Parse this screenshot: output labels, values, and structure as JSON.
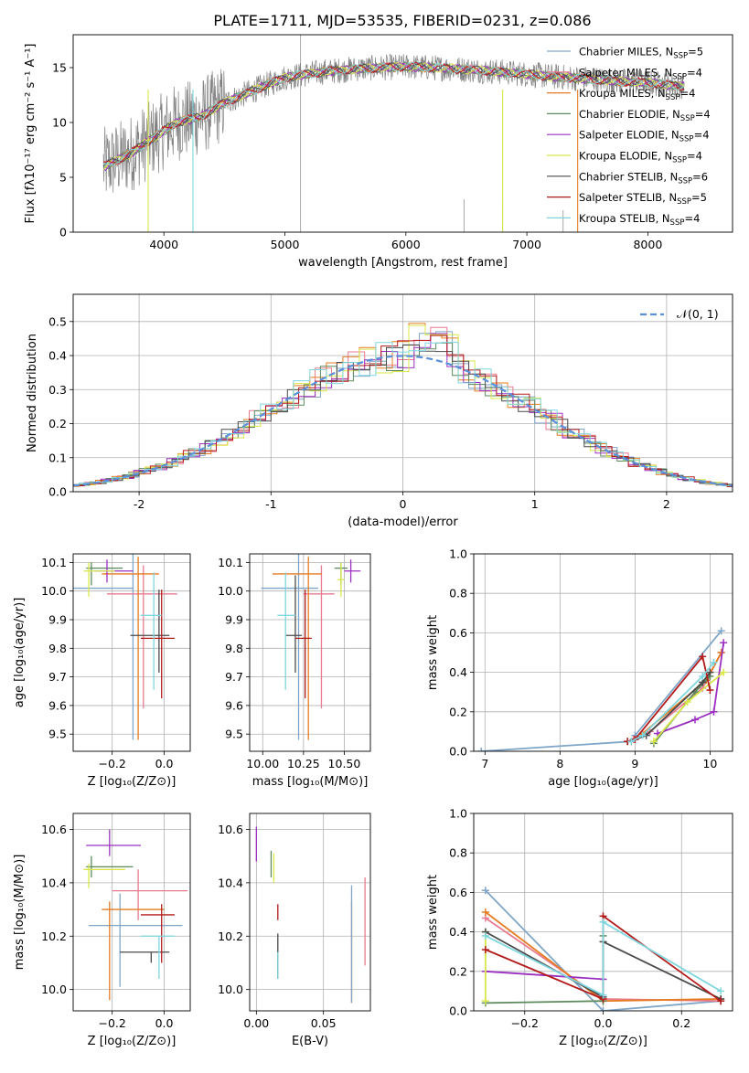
{
  "figure": {
    "title": "PLATE=1711, MJD=53535, FIBERID=0231, z=0.086"
  },
  "colors": {
    "Chabrier MILES": "#7fa6c8",
    "Salpeter MILES": "#e87a8f",
    "Kroupa MILES": "#e57c22",
    "Chabrier ELODIE": "#5c8a5c",
    "Salpeter ELODIE": "#9b30c0",
    "Kroupa ELODIE": "#d8e84a",
    "Chabrier STELIB": "#4a4a4a",
    "Salpeter STELIB": "#b31b1b",
    "Kroupa STELIB": "#7fd6df",
    "data": "#808080",
    "gauss": "#5b8fd9"
  },
  "chart_data": [
    {
      "id": "spectrum",
      "type": "line",
      "xlabel": "wavelength [Angstrom, rest frame]",
      "ylabel": "Flux [fλ10⁻¹⁷ erg cm⁻² s⁻¹ A⁻¹]",
      "xlim": [
        3250,
        8700
      ],
      "ylim": [
        0,
        18
      ],
      "xticks": [
        4000,
        5000,
        6000,
        7000,
        8000
      ],
      "yticks": [
        0,
        5,
        10,
        15
      ],
      "grid": false,
      "legend": "top-right",
      "continuum": {
        "x": [
          3500,
          3700,
          3900,
          4100,
          4300,
          4500,
          4800,
          5000,
          5300,
          5600,
          6000,
          6400,
          6800,
          7200,
          7600,
          8000,
          8300
        ],
        "y": [
          6.0,
          7.0,
          8.5,
          10.0,
          10.5,
          11.8,
          13.2,
          14.1,
          14.6,
          14.9,
          15.1,
          14.9,
          14.6,
          14.2,
          13.9,
          13.6,
          13.3
        ]
      },
      "legend_entries": [
        {
          "name": "Chabrier MILES, N",
          "sub": "SSP",
          "tail": "=5"
        },
        {
          "name": "Salpeter MILES, N",
          "sub": "SSP",
          "tail": "=4"
        },
        {
          "name": "Kroupa MILES, N",
          "sub": "SSP",
          "tail": "=4"
        },
        {
          "name": "Chabrier ELODIE, N",
          "sub": "SSP",
          "tail": "=4"
        },
        {
          "name": "Salpeter ELODIE, N",
          "sub": "SSP",
          "tail": "=4"
        },
        {
          "name": "Kroupa ELODIE, N",
          "sub": "SSP",
          "tail": "=4"
        },
        {
          "name": "Chabrier STELIB, N",
          "sub": "SSP",
          "tail": "=6"
        },
        {
          "name": "Salpeter STELIB, N",
          "sub": "SSP",
          "tail": "=5"
        },
        {
          "name": "Kroupa STELIB, N",
          "sub": "SSP",
          "tail": "=4"
        }
      ]
    },
    {
      "id": "residuals",
      "type": "line",
      "xlabel": "(data-model)/error",
      "ylabel": "Normed distribution",
      "xlim": [
        -2.5,
        2.5
      ],
      "ylim": [
        0,
        0.58
      ],
      "xticks": [
        -2,
        -1,
        0,
        1,
        2
      ],
      "yticks": [
        0.0,
        0.1,
        0.2,
        0.3,
        0.4,
        0.5
      ],
      "grid": true,
      "legend": "top-right",
      "gauss_label": "𝒩(0, 1)"
    },
    {
      "id": "age_Z",
      "type": "scatter",
      "xlabel": "Z [log₁₀(Z/Z⊙)]",
      "ylabel": "age  [log₁₀(age/yr)]",
      "xlim": [
        -0.35,
        0.1
      ],
      "ylim": [
        9.44,
        10.13
      ],
      "xticks": [
        -0.2,
        0.0
      ],
      "xticklabels": [
        "−0.2",
        "0.0"
      ],
      "yticks": [
        9.5,
        9.6,
        9.7,
        9.8,
        9.9,
        10.0,
        10.1
      ],
      "grid": true,
      "points": [
        {
          "model": "Chabrier MILES",
          "x": -0.12,
          "y": 10.01,
          "xerr": [
            0.24,
            0.0
          ],
          "yerr": [
            0.53,
            0.12
          ]
        },
        {
          "model": "Salpeter MILES",
          "x": -0.08,
          "y": 9.99,
          "xerr": [
            0.14,
            0.13
          ],
          "yerr": [
            0.4,
            0.1
          ]
        },
        {
          "model": "Kroupa MILES",
          "x": -0.1,
          "y": 10.06,
          "xerr": [
            0.14,
            0.08
          ],
          "yerr": [
            0.58,
            0.06
          ]
        },
        {
          "model": "Chabrier ELODIE",
          "x": -0.28,
          "y": 10.08,
          "xerr": [
            0.02,
            0.12
          ],
          "yerr": [
            0.06,
            0.02
          ]
        },
        {
          "model": "Salpeter ELODIE",
          "x": -0.22,
          "y": 10.07,
          "xerr": [
            0.05,
            0.1
          ],
          "yerr": [
            0.04,
            0.04
          ]
        },
        {
          "model": "Kroupa ELODIE",
          "x": -0.29,
          "y": 10.07,
          "xerr": [
            0.02,
            0.1
          ],
          "yerr": [
            0.09,
            0.03
          ]
        },
        {
          "model": "Chabrier STELIB",
          "x": -0.02,
          "y": 9.845,
          "xerr": [
            0.11,
            0.04
          ],
          "yerr": [
            0.13,
            0.16
          ]
        },
        {
          "model": "Salpeter STELIB",
          "x": -0.01,
          "y": 9.835,
          "xerr": [
            0.08,
            0.05
          ],
          "yerr": [
            0.21,
            0.17
          ]
        },
        {
          "model": "Kroupa STELIB",
          "x": -0.04,
          "y": 9.915,
          "xerr": [
            0.05,
            0.03
          ],
          "yerr": [
            0.26,
            0.15
          ]
        }
      ]
    },
    {
      "id": "age_mass",
      "type": "scatter",
      "xlabel": "mass [log₁₀(M/M⊙)]",
      "ylabel": "",
      "xlim": [
        9.92,
        10.66
      ],
      "ylim": [
        9.44,
        10.13
      ],
      "xticks": [
        10.0,
        10.25,
        10.5
      ],
      "xticklabels": [
        "10.00",
        "10.25",
        "10.50"
      ],
      "yticks": [
        9.5,
        9.6,
        9.7,
        9.8,
        9.9,
        10.0,
        10.1
      ],
      "grid": true,
      "points": [
        {
          "model": "Chabrier MILES",
          "x": 10.22,
          "y": 10.01,
          "xerr": [
            0.23,
            0.12
          ],
          "yerr": [
            0.53,
            0.12
          ]
        },
        {
          "model": "Salpeter MILES",
          "x": 10.36,
          "y": 9.99,
          "xerr": [
            0.11,
            0.08
          ],
          "yerr": [
            0.4,
            0.1
          ]
        },
        {
          "model": "Kroupa MILES",
          "x": 10.28,
          "y": 10.06,
          "xerr": [
            0.22,
            0.08
          ],
          "yerr": [
            0.58,
            0.06
          ]
        },
        {
          "model": "Chabrier ELODIE",
          "x": 10.48,
          "y": 10.08,
          "xerr": [
            0.04,
            0.04
          ],
          "yerr": [
            0.06,
            0.02
          ]
        },
        {
          "model": "Salpeter ELODIE",
          "x": 10.54,
          "y": 10.07,
          "xerr": [
            0.04,
            0.06
          ],
          "yerr": [
            0.04,
            0.04
          ]
        },
        {
          "model": "Kroupa ELODIE",
          "x": 10.48,
          "y": 10.04,
          "xerr": [
            0.02,
            0.02
          ],
          "yerr": [
            0.06,
            0.06
          ]
        },
        {
          "model": "Chabrier STELIB",
          "x": 10.2,
          "y": 9.845,
          "xerr": [
            0.06,
            0.04
          ],
          "yerr": [
            0.13,
            0.21
          ]
        },
        {
          "model": "Salpeter STELIB",
          "x": 10.26,
          "y": 9.835,
          "xerr": [
            0.06,
            0.04
          ],
          "yerr": [
            0.21,
            0.17
          ]
        },
        {
          "model": "Kroupa STELIB",
          "x": 10.14,
          "y": 9.915,
          "xerr": [
            0.05,
            0.06
          ],
          "yerr": [
            0.26,
            0.15
          ]
        }
      ]
    },
    {
      "id": "weight_age",
      "type": "line",
      "xlabel": "age  [log₁₀(age/yr)]",
      "ylabel": "mass weight",
      "xlim": [
        6.85,
        10.3
      ],
      "ylim": [
        0,
        1.0
      ],
      "xticks": [
        7,
        8,
        9,
        10
      ],
      "yticks": [
        0.0,
        0.2,
        0.4,
        0.6,
        0.8,
        1.0
      ],
      "grid": true,
      "series": [
        {
          "model": "Chabrier MILES",
          "x": [
            6.95,
            8.95,
            9.0,
            10.15
          ],
          "y": [
            0.0,
            0.05,
            0.08,
            0.61
          ]
        },
        {
          "model": "Salpeter MILES",
          "x": [
            8.98,
            9.2,
            9.9,
            10.15
          ],
          "y": [
            0.06,
            0.1,
            0.32,
            0.5
          ]
        },
        {
          "model": "Kroupa MILES",
          "x": [
            8.95,
            9.1,
            9.95,
            10.15
          ],
          "y": [
            0.05,
            0.09,
            0.36,
            0.5
          ]
        },
        {
          "model": "Chabrier ELODIE",
          "x": [
            9.25,
            9.8,
            10.0
          ],
          "y": [
            0.04,
            0.3,
            0.38
          ]
        },
        {
          "model": "Salpeter ELODIE",
          "x": [
            9.3,
            9.8,
            10.05,
            10.18
          ],
          "y": [
            0.09,
            0.16,
            0.2,
            0.55
          ]
        },
        {
          "model": "Kroupa ELODIE",
          "x": [
            9.25,
            9.7,
            10.18
          ],
          "y": [
            0.05,
            0.25,
            0.4
          ]
        },
        {
          "model": "Chabrier STELIB",
          "x": [
            8.9,
            9.0,
            9.15,
            9.9,
            10.0
          ],
          "y": [
            0.05,
            0.06,
            0.08,
            0.35,
            0.4
          ]
        },
        {
          "model": "Salpeter STELIB",
          "x": [
            8.9,
            9.0,
            9.9,
            10.0
          ],
          "y": [
            0.05,
            0.06,
            0.48,
            0.31
          ]
        },
        {
          "model": "Kroupa STELIB",
          "x": [
            8.95,
            9.1,
            9.9,
            10.05
          ],
          "y": [
            0.05,
            0.08,
            0.38,
            0.45
          ]
        }
      ]
    },
    {
      "id": "mass_Z",
      "type": "scatter",
      "xlabel": "Z [log₁₀(Z/Z⊙)]",
      "ylabel": "mass [log₁₀(M/M⊙)]",
      "xlim": [
        -0.35,
        0.1
      ],
      "ylim": [
        9.92,
        10.66
      ],
      "xticks": [
        -0.2,
        0.0
      ],
      "xticklabels": [
        "−0.2",
        "0.0"
      ],
      "yticks": [
        10.0,
        10.2,
        10.4,
        10.6
      ],
      "yticklabels": [
        "10.0",
        "10.2",
        "10.4",
        "10.6"
      ],
      "grid": true,
      "points": [
        {
          "model": "Chabrier MILES",
          "x": -0.17,
          "y": 10.24,
          "xerr": [
            0.12,
            0.24
          ],
          "yerr": [
            0.23,
            0.12
          ]
        },
        {
          "model": "Salpeter MILES",
          "x": -0.1,
          "y": 10.37,
          "xerr": [
            0.1,
            0.19
          ],
          "yerr": [
            0.11,
            0.08
          ]
        },
        {
          "model": "Kroupa MILES",
          "x": -0.21,
          "y": 10.3,
          "xerr": [
            0.03,
            0.21
          ],
          "yerr": [
            0.34,
            0.03
          ]
        },
        {
          "model": "Chabrier ELODIE",
          "x": -0.28,
          "y": 10.46,
          "xerr": [
            0.02,
            0.16
          ],
          "yerr": [
            0.04,
            0.04
          ]
        },
        {
          "model": "Salpeter ELODIE",
          "x": -0.21,
          "y": 10.54,
          "xerr": [
            0.09,
            0.12
          ],
          "yerr": [
            0.04,
            0.06
          ]
        },
        {
          "model": "Kroupa ELODIE",
          "x": -0.29,
          "y": 10.45,
          "xerr": [
            0.02,
            0.14
          ],
          "yerr": [
            0.07,
            0.02
          ]
        },
        {
          "model": "Chabrier STELIB",
          "x": -0.05,
          "y": 10.14,
          "xerr": [
            0.12,
            0.07
          ],
          "yerr": [
            0.04,
            0.0
          ]
        },
        {
          "model": "Salpeter STELIB",
          "x": -0.01,
          "y": 10.28,
          "xerr": [
            0.08,
            0.05
          ],
          "yerr": [
            0.18,
            0.04
          ]
        },
        {
          "model": "Kroupa STELIB",
          "x": -0.02,
          "y": 10.2,
          "xerr": [
            0.07,
            0.06
          ],
          "yerr": [
            0.16,
            0.0
          ]
        }
      ]
    },
    {
      "id": "mass_EBV",
      "type": "scatter",
      "xlabel": "E(B-V)",
      "ylabel": "",
      "xlim": [
        -0.005,
        0.085
      ],
      "ylim": [
        9.92,
        10.66
      ],
      "xticks": [
        0.0,
        0.05
      ],
      "xticklabels": [
        "0.00",
        "0.05"
      ],
      "yticks": [
        10.0,
        10.2,
        10.4,
        10.6
      ],
      "yticklabels": [
        "10.0",
        "10.2",
        "10.4",
        "10.6"
      ],
      "grid": true,
      "points": [
        {
          "model": "Salpeter ELODIE",
          "x": 0.0,
          "y": 10.54,
          "yerr": [
            0.06,
            0.07
          ]
        },
        {
          "model": "Chabrier ELODIE",
          "x": 0.011,
          "y": 10.46,
          "yerr": [
            0.04,
            0.06
          ]
        },
        {
          "model": "Kroupa ELODIE",
          "x": 0.013,
          "y": 10.45,
          "yerr": [
            0.05,
            0.06
          ]
        },
        {
          "model": "Salpeter STELIB",
          "x": 0.016,
          "y": 10.28,
          "yerr": [
            0.02,
            0.04
          ]
        },
        {
          "model": "Chabrier STELIB",
          "x": 0.016,
          "y": 10.14,
          "yerr": [
            0.1,
            0.07
          ]
        },
        {
          "model": "Kroupa STELIB",
          "x": 0.016,
          "y": 10.12,
          "yerr": [
            0.08,
            0.02
          ]
        },
        {
          "model": "Kroupa MILES",
          "x": 0.071,
          "y": 10.3,
          "yerr": [
            0.35,
            0.03
          ]
        },
        {
          "model": "Chabrier MILES",
          "x": 0.071,
          "y": 10.24,
          "yerr": [
            0.29,
            0.15
          ]
        },
        {
          "model": "Salpeter MILES",
          "x": 0.081,
          "y": 10.37,
          "yerr": [
            0.28,
            0.05
          ]
        }
      ]
    },
    {
      "id": "weight_Z",
      "type": "line",
      "xlabel": "Z [log₁₀(Z/Z⊙)]",
      "ylabel": "mass weight",
      "xlim": [
        -0.33,
        0.33
      ],
      "ylim": [
        0,
        1.0
      ],
      "xticks": [
        -0.2,
        0.0,
        0.2
      ],
      "xticklabels": [
        "−0.2",
        "0.0",
        "0.2"
      ],
      "yticks": [
        0.0,
        0.2,
        0.4,
        0.6,
        0.8,
        1.0
      ],
      "grid": true,
      "series": [
        {
          "model": "Chabrier MILES",
          "x": [
            -0.3,
            0.0,
            0.3
          ],
          "y": [
            0.61,
            0.0,
            0.05
          ]
        },
        {
          "model": "Salpeter MILES",
          "x": [
            -0.3,
            0.0,
            0.3
          ],
          "y": [
            0.47,
            0.06,
            0.05
          ]
        },
        {
          "model": "Kroupa MILES",
          "x": [
            -0.3,
            0.0,
            0.3
          ],
          "y": [
            0.5,
            0.05,
            0.06
          ]
        },
        {
          "model": "Chabrier ELODIE",
          "x": [
            -0.3,
            0.0,
            0.0
          ],
          "y": [
            0.04,
            0.05,
            0.38
          ]
        },
        {
          "model": "Salpeter ELODIE",
          "x": [
            -0.3,
            0.0
          ],
          "y": [
            0.2,
            0.16
          ]
        },
        {
          "model": "Kroupa ELODIE",
          "x": [
            -0.3,
            -0.3
          ],
          "y": [
            0.05,
            0.4
          ]
        },
        {
          "model": "Chabrier STELIB",
          "x": [
            -0.3,
            0.0,
            0.0,
            0.3
          ],
          "y": [
            0.4,
            0.07,
            0.35,
            0.06
          ]
        },
        {
          "model": "Salpeter STELIB",
          "x": [
            -0.3,
            0.0,
            0.0,
            0.3
          ],
          "y": [
            0.31,
            0.06,
            0.48,
            0.05
          ]
        },
        {
          "model": "Kroupa STELIB",
          "x": [
            -0.3,
            0.0,
            0.0,
            0.3
          ],
          "y": [
            0.38,
            0.08,
            0.45,
            0.1
          ]
        }
      ]
    }
  ]
}
